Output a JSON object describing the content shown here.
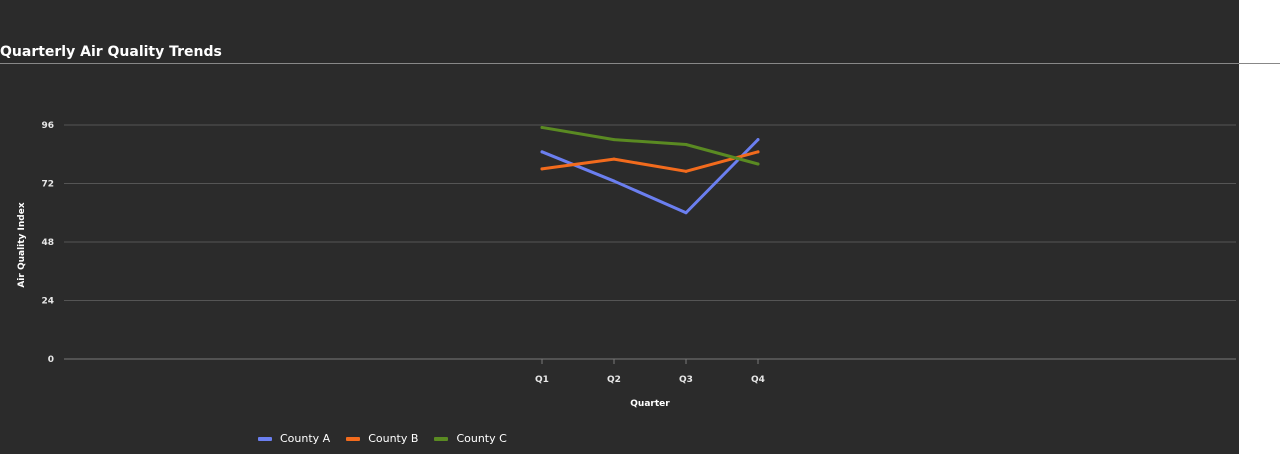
{
  "chart_data": {
    "type": "line",
    "title": "Quarterly Air Quality Trends",
    "xlabel": "Quarter",
    "ylabel": "Air Quality Index",
    "categories": [
      "Q1",
      "Q2",
      "Q3",
      "Q4"
    ],
    "ylim": [
      0,
      96
    ],
    "yticks": [
      0,
      24,
      48,
      72,
      96
    ],
    "grid": true,
    "legend_position": "bottom-left",
    "series": [
      {
        "name": "County A",
        "color": "#6b7ff0",
        "values": [
          85,
          73,
          60,
          90
        ]
      },
      {
        "name": "County B",
        "color": "#f26b1d",
        "values": [
          78,
          82,
          77,
          85
        ]
      },
      {
        "name": "County C",
        "color": "#5a8a22",
        "values": [
          95,
          90,
          88,
          80
        ]
      }
    ]
  }
}
